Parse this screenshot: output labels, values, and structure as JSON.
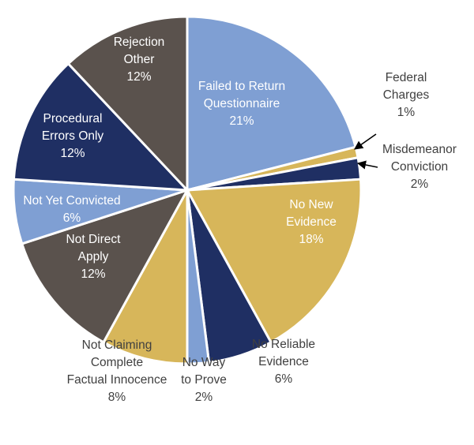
{
  "chart_data": {
    "type": "pie",
    "title": "",
    "slices": [
      {
        "lines": [
          "Failed to Return",
          "Questionnaire",
          "21%"
        ],
        "value": 21,
        "color": "#7f9fd3",
        "label_inside": true
      },
      {
        "lines": [
          "Federal",
          "Charges",
          "1%"
        ],
        "value": 1,
        "color": "#d7b65a",
        "label_inside": false
      },
      {
        "lines": [
          "Misdemeanor",
          "Conviction",
          "2%"
        ],
        "value": 2,
        "color": "#1f2f63",
        "label_inside": false
      },
      {
        "lines": [
          "No New",
          "Evidence",
          "18%"
        ],
        "value": 18,
        "color": "#d7b65a",
        "label_inside": true
      },
      {
        "lines": [
          "No Reliable",
          "Evidence",
          "6%"
        ],
        "value": 6,
        "color": "#1f2f63",
        "label_inside": false
      },
      {
        "lines": [
          "No Way",
          "to Prove",
          "2%"
        ],
        "value": 2,
        "color": "#7f9fd3",
        "label_inside": false
      },
      {
        "lines": [
          "Not Claiming",
          "Complete",
          "Factual Innocence",
          "8%"
        ],
        "value": 8,
        "color": "#d7b65a",
        "label_inside": false
      },
      {
        "lines": [
          "Not Direct",
          "Apply",
          "12%"
        ],
        "value": 12,
        "color": "#5a524d",
        "label_inside": true
      },
      {
        "lines": [
          "Not Yet Convicted",
          "6%"
        ],
        "value": 6,
        "color": "#7f9fd3",
        "label_inside": true
      },
      {
        "lines": [
          "Procedural",
          "Errors Only",
          "12%"
        ],
        "value": 12,
        "color": "#1f2f63",
        "label_inside": true
      },
      {
        "lines": [
          "Rejection",
          "Other",
          "12%"
        ],
        "value": 12,
        "color": "#5a524d",
        "label_inside": true
      }
    ]
  }
}
